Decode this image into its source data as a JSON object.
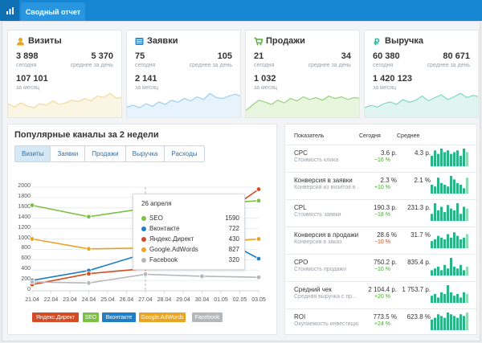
{
  "header": {
    "tab_label": "Сводный отчет"
  },
  "cards": [
    {
      "title": "Визиты",
      "icon": "user-icon",
      "today": "3 898",
      "today_label": "сегодня",
      "avg": "5 370",
      "avg_label": "среднее за день",
      "month": "107 101",
      "month_label": "за месяц",
      "color": "#f3d89a",
      "fill": "#fbf5e4",
      "spark": [
        40,
        30,
        42,
        33,
        28,
        40,
        35,
        48,
        38,
        42,
        50,
        46,
        55,
        48,
        62,
        58,
        70,
        55,
        60
      ]
    },
    {
      "title": "Заявки",
      "icon": "list-icon",
      "today": "75",
      "today_label": "сегодня",
      "avg": "105",
      "avg_label": "среднее за день",
      "month": "2 141",
      "month_label": "за месяц",
      "color": "#9ccff2",
      "fill": "#e6f3fc",
      "spark": [
        30,
        35,
        28,
        40,
        32,
        45,
        38,
        50,
        44,
        55,
        48,
        60,
        52,
        70,
        58,
        55,
        62,
        68,
        60
      ]
    },
    {
      "title": "Продажи",
      "icon": "cart-icon",
      "today": "21",
      "today_label": "сегодня",
      "avg": "34",
      "avg_label": "среднее за день",
      "month": "1 032",
      "month_label": "за месяц",
      "color": "#97d37d",
      "fill": "#e8f6e0",
      "spark": [
        20,
        35,
        50,
        45,
        38,
        50,
        42,
        55,
        48,
        60,
        52,
        58,
        50,
        62,
        55,
        60,
        52,
        58,
        55
      ]
    },
    {
      "title": "Выручка",
      "icon": "ruble-icon",
      "today": "60 380",
      "today_label": "сегодня",
      "avg": "80 671",
      "avg_label": "среднее за день",
      "month": "1 420 123",
      "month_label": "за месяц",
      "color": "#7fd7c4",
      "fill": "#e0f5f0",
      "spark": [
        28,
        35,
        30,
        40,
        45,
        38,
        52,
        44,
        50,
        62,
        48,
        58,
        66,
        52,
        60,
        70,
        58,
        64,
        60
      ]
    }
  ],
  "channels": {
    "title": "Популярные каналы за 2 недели",
    "tabs": [
      "Визиты",
      "Заявки",
      "Продажи",
      "Выручка",
      "Расходы"
    ],
    "active_tab": "Визиты"
  },
  "chart_data": {
    "type": "line",
    "x": [
      "21.04",
      "22.04",
      "23.04",
      "24.04",
      "25.04",
      "26.04",
      "27.04",
      "28.04",
      "29.04",
      "30.04",
      "01.05",
      "02.05",
      "03.05"
    ],
    "ylim": [
      0,
      2000
    ],
    "yticks": [
      "2000",
      "1800",
      "1600",
      "1400",
      "1200",
      "1000",
      "800",
      "600",
      "400",
      "200",
      "0"
    ],
    "series": [
      {
        "name": "SEO",
        "color": "#7cc242",
        "x": [
          0,
          3,
          6,
          12
        ],
        "values": [
          1650,
          1430,
          1590,
          1740
        ]
      },
      {
        "name": "Вконтакте",
        "color": "#1e7fc6",
        "x": [
          0,
          3,
          6,
          10,
          12
        ],
        "values": [
          200,
          390,
          722,
          1010,
          620
        ]
      },
      {
        "name": "Яндекс.Директ",
        "color": "#d24d26",
        "x": [
          0,
          3,
          6,
          12
        ],
        "values": [
          120,
          330,
          430,
          1960
        ]
      },
      {
        "name": "Google.AdWords",
        "color": "#e8a424",
        "x": [
          0,
          3,
          6,
          12
        ],
        "values": [
          1000,
          810,
          827,
          1000
        ]
      },
      {
        "name": "Facebook",
        "color": "#b4b8bb",
        "x": [
          0,
          3,
          6,
          9,
          12
        ],
        "values": [
          170,
          150,
          320,
          280,
          260
        ]
      }
    ],
    "tooltip": {
      "date": "26 апреля",
      "rows": [
        {
          "name": "SEO",
          "value": "1590",
          "color": "#7cc242"
        },
        {
          "name": "Вконтакте",
          "value": "722",
          "color": "#1e7fc6"
        },
        {
          "name": "Яндекс.Директ",
          "value": "430",
          "color": "#d24d26"
        },
        {
          "name": "Google.AdWords",
          "value": "827",
          "color": "#e8a424"
        },
        {
          "name": "Facebook",
          "value": "320",
          "color": "#b4b8bb"
        }
      ]
    },
    "legend": [
      {
        "name": "Яндекс.Директ",
        "color": "#d24d26"
      },
      {
        "name": "SEO",
        "color": "#7cc242"
      },
      {
        "name": "Вконтакте",
        "color": "#1e7fc6"
      },
      {
        "name": "Google.AdWords",
        "color": "#e8a424"
      },
      {
        "name": "Facebook",
        "color": "#b4b8bb"
      }
    ]
  },
  "metrics": {
    "headers": {
      "name": "Показатель",
      "today": "Сегодня",
      "avg": "Среднее"
    },
    "rows": [
      {
        "name": "CPC",
        "sub": "Стоимость клика",
        "today": "3.6 р.",
        "change": "−16 %",
        "dir": "down",
        "avg": "4.3 р.",
        "bars": [
          6,
          9,
          7,
          10,
          8,
          9,
          7,
          8,
          9,
          6,
          10,
          8
        ]
      },
      {
        "name": "Конверсия в заявки",
        "sub": "Конверсия из визитов в ...",
        "today": "2.3 %",
        "change": "+10 %",
        "dir": "up",
        "avg": "2.1 %",
        "bars": [
          5,
          4,
          9,
          6,
          5,
          4,
          10,
          8,
          6,
          5,
          3,
          9
        ]
      },
      {
        "name": "CPL",
        "sub": "Стоимость заявки",
        "today": "190.3 р.",
        "change": "−18 %",
        "dir": "down",
        "avg": "231.3 р.",
        "bars": [
          4,
          10,
          6,
          8,
          5,
          9,
          7,
          6,
          10,
          4,
          8,
          7
        ]
      },
      {
        "name": "Конверсия в продажи",
        "sub": "Конверсия в заказ",
        "today": "28.6 %",
        "change": "−10 %",
        "dir": "down_bad",
        "avg": "31.7 %",
        "bars": [
          4,
          5,
          7,
          6,
          5,
          8,
          6,
          9,
          7,
          5,
          6,
          8
        ]
      },
      {
        "name": "CPO",
        "sub": "Стоимость продажи",
        "today": "750.2 р.",
        "change": "−10 %",
        "dir": "down",
        "avg": "835.4 р.",
        "bars": [
          3,
          4,
          5,
          3,
          6,
          4,
          10,
          5,
          4,
          6,
          3,
          5
        ]
      },
      {
        "name": "Средний чек",
        "sub": "Средняя выручка с пр...",
        "today": "2 104.4 р.",
        "change": "+20 %",
        "dir": "up",
        "avg": "1 753.7 р.",
        "bars": [
          4,
          5,
          3,
          6,
          5,
          10,
          6,
          4,
          5,
          3,
          6,
          5
        ]
      },
      {
        "name": "ROI",
        "sub": "Окупаемость инвестиций",
        "today": "773.5 %",
        "change": "+24 %",
        "dir": "up",
        "avg": "623.8 %",
        "bars": [
          6,
          7,
          9,
          8,
          7,
          10,
          9,
          8,
          7,
          9,
          8,
          10
        ]
      }
    ]
  }
}
